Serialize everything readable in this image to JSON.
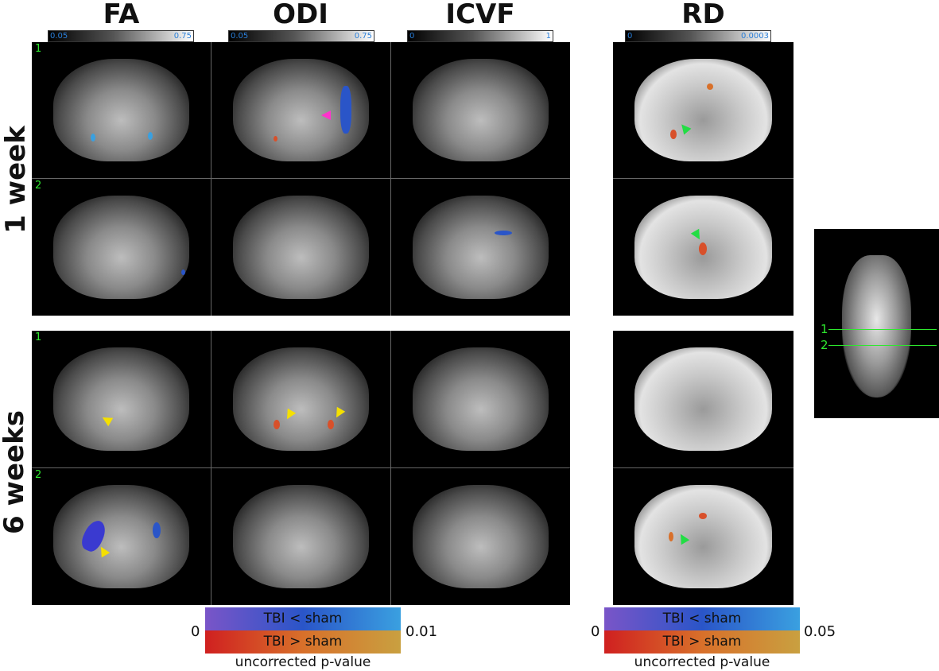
{
  "columns": [
    {
      "name": "FA",
      "cbar_min": "0.05",
      "cbar_max": "0.75"
    },
    {
      "name": "ODI",
      "cbar_min": "0.05",
      "cbar_max": "0.75"
    },
    {
      "name": "ICVF",
      "cbar_min": "0",
      "cbar_max": "1"
    },
    {
      "name": "RD",
      "cbar_min": "0",
      "cbar_max": "0.0003"
    }
  ],
  "rows": [
    {
      "label": "1 week",
      "slices": [
        "1",
        "2"
      ]
    },
    {
      "label": "6 weeks",
      "slices": [
        "1",
        "2"
      ]
    }
  ],
  "reference": {
    "slice_labels": [
      "1",
      "2"
    ]
  },
  "legend_left": {
    "min": "0",
    "max": "0.01",
    "blue_label": "TBI < sham",
    "red_label": "TBI > sham",
    "caption": "uncorrected p-value"
  },
  "legend_right": {
    "min": "0",
    "max": "0.05",
    "blue_label": "TBI < sham",
    "red_label": "TBI > sham",
    "caption": "uncorrected p-value"
  },
  "colors": {
    "slice_label": "#2ee82e",
    "cbar_text": "#2a7fd9",
    "arrow_yellow": "#f5e000",
    "arrow_green": "#22dd44",
    "arrow_magenta": "#ff33cc"
  }
}
